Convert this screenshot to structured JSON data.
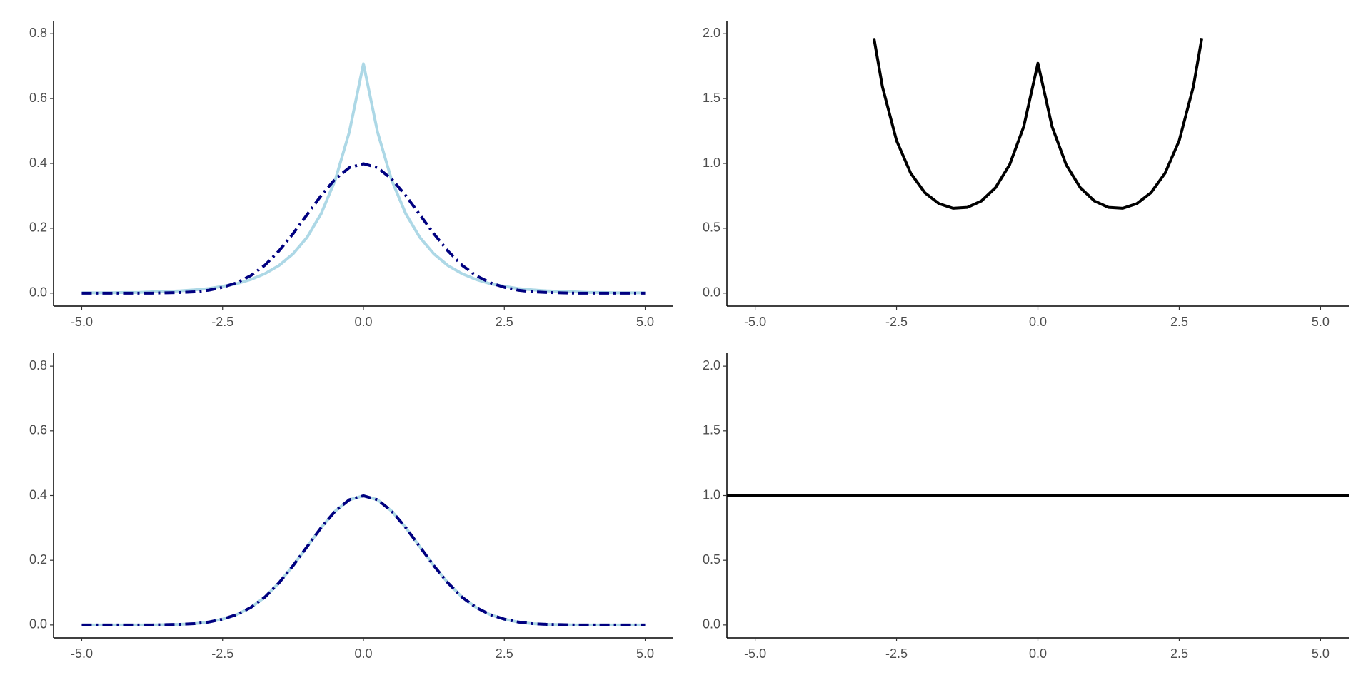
{
  "chart_data": [
    {
      "type": "line",
      "x": [
        -5,
        -4.75,
        -4.5,
        -4.25,
        -4,
        -3.75,
        -3.5,
        -3.25,
        -3,
        -2.75,
        -2.5,
        -2.25,
        -2,
        -1.75,
        -1.5,
        -1.25,
        -1,
        -0.75,
        -0.5,
        -0.25,
        0,
        0.25,
        0.5,
        0.75,
        1,
        1.25,
        1.5,
        1.75,
        2,
        2.25,
        2.5,
        2.75,
        3,
        3.25,
        3.5,
        3.75,
        4,
        4.25,
        4.5,
        4.75,
        5
      ],
      "series": [
        {
          "color": "#add8e6",
          "linestyle": "solid",
          "values": [
            0.001,
            0.001,
            0.001,
            0.002,
            0.002,
            0.004,
            0.005,
            0.007,
            0.01,
            0.014,
            0.021,
            0.029,
            0.042,
            0.06,
            0.085,
            0.121,
            0.172,
            0.245,
            0.349,
            0.497,
            0.707,
            0.497,
            0.349,
            0.245,
            0.172,
            0.121,
            0.085,
            0.06,
            0.042,
            0.029,
            0.021,
            0.014,
            0.01,
            0.007,
            0.005,
            0.004,
            0.002,
            0.002,
            0.001,
            0.001,
            0.001
          ]
        },
        {
          "color": "#000080",
          "linestyle": "dashdot",
          "values": [
            0,
            0,
            0,
            0,
            0,
            0,
            0.001,
            0.002,
            0.004,
            0.009,
            0.018,
            0.032,
            0.054,
            0.086,
            0.13,
            0.183,
            0.242,
            0.301,
            0.352,
            0.387,
            0.399,
            0.387,
            0.352,
            0.301,
            0.242,
            0.183,
            0.13,
            0.086,
            0.054,
            0.032,
            0.018,
            0.009,
            0.004,
            0.002,
            0.001,
            0,
            0,
            0,
            0,
            0,
            0
          ]
        }
      ],
      "xlim": [
        -5.5,
        5.5
      ],
      "ylim": [
        -0.04,
        0.84
      ],
      "xticks": [
        {
          "value": -5,
          "label": "-5.0"
        },
        -2.5,
        {
          "value": 0,
          "label": "0.0"
        },
        2.5,
        {
          "value": 5,
          "label": "5.0"
        }
      ],
      "yticks": [
        {
          "value": 0,
          "label": "0.0"
        },
        0.2,
        0.4,
        0.6,
        0.8
      ]
    },
    {
      "type": "line",
      "x": [
        -2.9,
        -2.75,
        -2.5,
        -2.25,
        -2,
        -1.75,
        -1.5,
        -1.25,
        -1,
        -0.75,
        -0.5,
        -0.25,
        0,
        0.25,
        0.5,
        0.75,
        1,
        1.25,
        1.5,
        1.75,
        2,
        2.25,
        2.5,
        2.75,
        2.9
      ],
      "series": [
        {
          "color": "#000000",
          "linestyle": "solid",
          "values": [
            1.966,
            1.591,
            1.176,
            0.925,
            0.774,
            0.69,
            0.654,
            0.661,
            0.71,
            0.813,
            0.99,
            1.284,
            1.772,
            1.284,
            0.99,
            0.813,
            0.71,
            0.661,
            0.654,
            0.69,
            0.774,
            0.925,
            1.176,
            1.591,
            1.966
          ]
        }
      ],
      "xlim": [
        -5.5,
        5.5
      ],
      "ylim": [
        -0.1,
        2.1
      ],
      "xticks": [
        {
          "value": -5,
          "label": "-5.0"
        },
        -2.5,
        {
          "value": 0,
          "label": "0.0"
        },
        2.5,
        {
          "value": 5,
          "label": "5.0"
        }
      ],
      "yticks": [
        {
          "value": 0,
          "label": "0.0"
        },
        0.5,
        {
          "value": 1,
          "label": "1.0"
        },
        1.5,
        {
          "value": 2,
          "label": "2.0"
        }
      ]
    },
    {
      "type": "line",
      "x": [
        -5,
        -4.75,
        -4.5,
        -4.25,
        -4,
        -3.75,
        -3.5,
        -3.25,
        -3,
        -2.75,
        -2.5,
        -2.25,
        -2,
        -1.75,
        -1.5,
        -1.25,
        -1,
        -0.75,
        -0.5,
        -0.25,
        0,
        0.25,
        0.5,
        0.75,
        1,
        1.25,
        1.5,
        1.75,
        2,
        2.25,
        2.5,
        2.75,
        3,
        3.25,
        3.5,
        3.75,
        4,
        4.25,
        4.5,
        4.75,
        5
      ],
      "series": [
        {
          "color": "#add8e6",
          "linestyle": "solid",
          "values": [
            0,
            0,
            0,
            0,
            0,
            0,
            0.001,
            0.002,
            0.004,
            0.009,
            0.018,
            0.032,
            0.054,
            0.086,
            0.13,
            0.183,
            0.242,
            0.301,
            0.352,
            0.387,
            0.399,
            0.387,
            0.352,
            0.301,
            0.242,
            0.183,
            0.13,
            0.086,
            0.054,
            0.032,
            0.018,
            0.009,
            0.004,
            0.002,
            0.001,
            0,
            0,
            0,
            0,
            0,
            0
          ]
        },
        {
          "color": "#000080",
          "linestyle": "dashdot",
          "values": [
            0,
            0,
            0,
            0,
            0,
            0,
            0.001,
            0.002,
            0.004,
            0.009,
            0.018,
            0.032,
            0.054,
            0.086,
            0.13,
            0.183,
            0.242,
            0.301,
            0.352,
            0.387,
            0.399,
            0.387,
            0.352,
            0.301,
            0.242,
            0.183,
            0.13,
            0.086,
            0.054,
            0.032,
            0.018,
            0.009,
            0.004,
            0.002,
            0.001,
            0,
            0,
            0,
            0,
            0,
            0
          ]
        }
      ],
      "xlim": [
        -5.5,
        5.5
      ],
      "ylim": [
        -0.04,
        0.84
      ],
      "xticks": [
        {
          "value": -5,
          "label": "-5.0"
        },
        -2.5,
        {
          "value": 0,
          "label": "0.0"
        },
        2.5,
        {
          "value": 5,
          "label": "5.0"
        }
      ],
      "yticks": [
        {
          "value": 0,
          "label": "0.0"
        },
        0.2,
        0.4,
        0.6,
        0.8
      ]
    },
    {
      "type": "line",
      "x": [
        -5.5,
        5.5
      ],
      "series": [
        {
          "color": "#000000",
          "linestyle": "solid",
          "values": [
            1,
            1
          ]
        }
      ],
      "xlim": [
        -5.5,
        5.5
      ],
      "ylim": [
        -0.1,
        2.1
      ],
      "xticks": [
        {
          "value": -5,
          "label": "-5.0"
        },
        -2.5,
        {
          "value": 0,
          "label": "0.0"
        },
        2.5,
        {
          "value": 5,
          "label": "5.0"
        }
      ],
      "yticks": [
        {
          "value": 0,
          "label": "0.0"
        },
        0.5,
        {
          "value": 1,
          "label": "1.0"
        },
        1.5,
        {
          "value": 2,
          "label": "2.0"
        }
      ]
    }
  ]
}
